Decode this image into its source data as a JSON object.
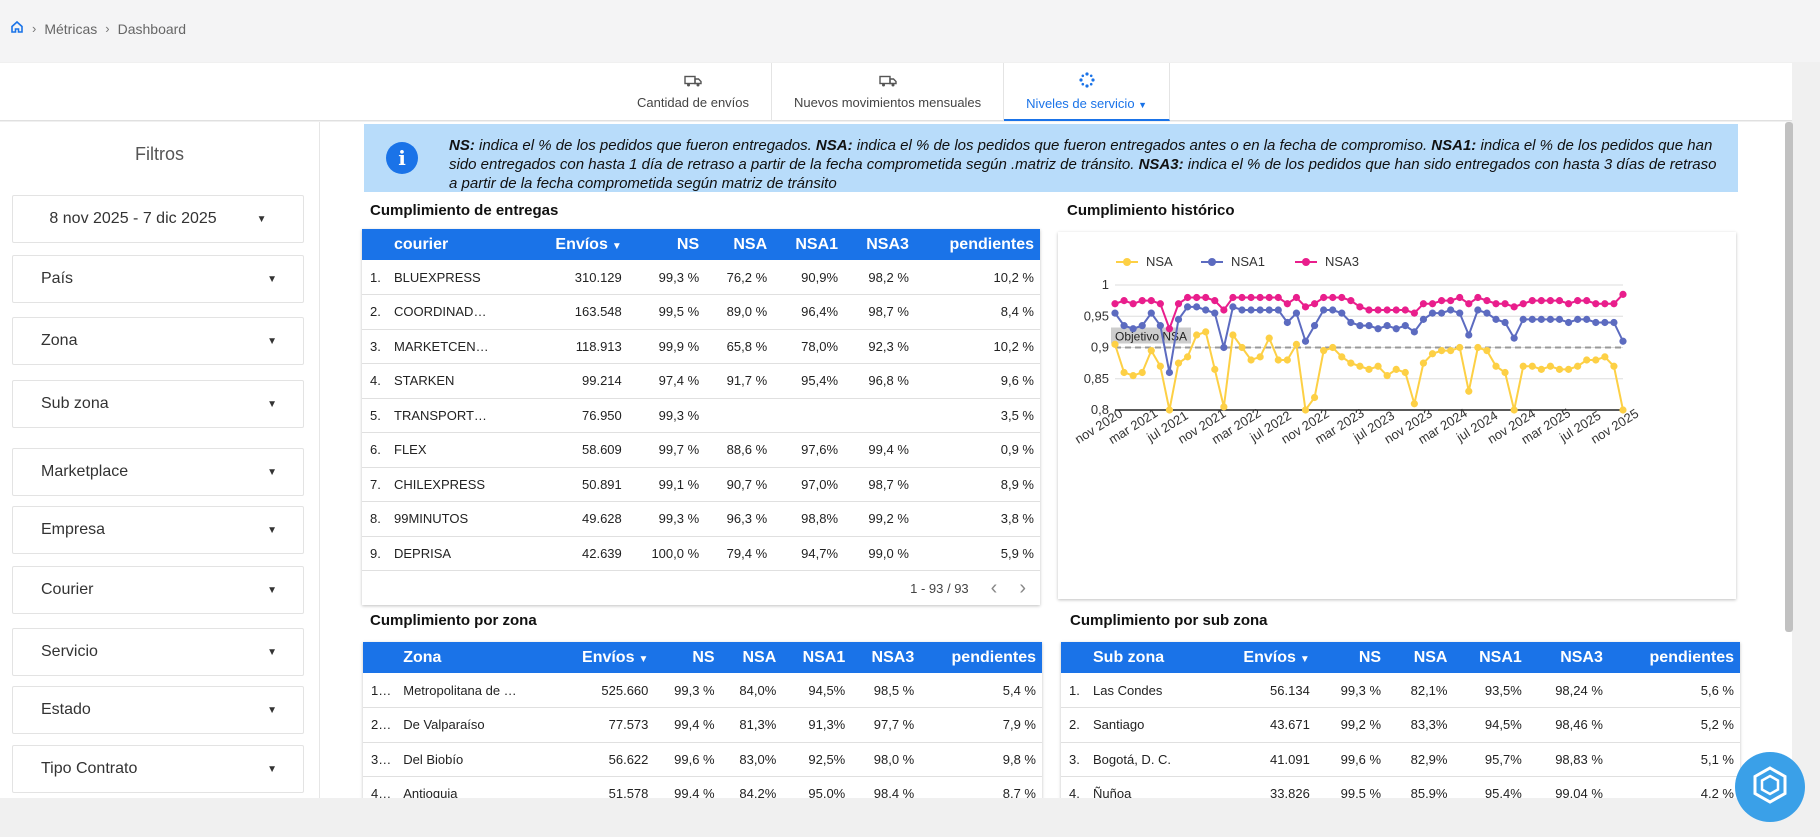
{
  "breadcrumb": {
    "home_icon": "home-icon",
    "items": [
      "Métricas",
      "Dashboard"
    ]
  },
  "tabs": [
    {
      "label": "Cantidad de envíos",
      "icon": "truck-icon"
    },
    {
      "label": "Nuevos movimientos mensuales",
      "icon": "truck-icon"
    },
    {
      "label": "Niveles de servicio",
      "icon": "loading-icon",
      "active": true
    }
  ],
  "sidebar": {
    "title": "Filtros",
    "date_range": "8 nov 2025 - 7 dic 2025",
    "filters": [
      "País",
      "Zona",
      "Sub zona",
      "Marketplace",
      "Empresa",
      "Courier",
      "Servicio",
      "Estado",
      "Tipo Contrato"
    ]
  },
  "info": {
    "ns_label": "NS:",
    "ns_text": " indica el % de los pedidos que fueron entregados. ",
    "nsa_label": "NSA:",
    "nsa_text": "  indica el % de los pedidos que fueron entregados antes o en la fecha de compromiso. ",
    "nsa1_label": "NSA1:",
    "nsa1_text": "  indica el % de los pedidos que han sido entregados con hasta 1 día de retraso a partir de la fecha comprometida según .matriz de tránsito. ",
    "nsa3_label": "NSA3:",
    "nsa3_text": "  indica el % de los pedidos que han sido entregados con hasta 3 días de retraso a partir de la fecha comprometida según matriz de tránsito"
  },
  "entregas": {
    "title": "Cumplimiento de entregas",
    "headers": [
      "courier",
      "Envíos",
      "NS",
      "NSA",
      "NSA1",
      "NSA3",
      "pendientes"
    ],
    "rows": [
      [
        "1.",
        "BLUEXPRESS",
        "310.129",
        "99,3 %",
        "76,2 %",
        "90,9%",
        "98,2 %",
        "10,2 %"
      ],
      [
        "2.",
        "COORDINAD…",
        "163.548",
        "99,5 %",
        "89,0 %",
        "96,4%",
        "98,7 %",
        "8,4 %"
      ],
      [
        "3.",
        "MARKETCEN…",
        "118.913",
        "99,9 %",
        "65,8 %",
        "78,0%",
        "92,3 %",
        "10,2 %"
      ],
      [
        "4.",
        "STARKEN",
        "99.214",
        "97,4 %",
        "91,7 %",
        "95,4%",
        "96,8 %",
        "9,6 %"
      ],
      [
        "5.",
        "TRANSPORT…",
        "76.950",
        "99,3 %",
        "",
        "",
        "",
        "3,5 %"
      ],
      [
        "6.",
        "FLEX",
        "58.609",
        "99,7 %",
        "88,6 %",
        "97,6%",
        "99,4 %",
        "0,9 %"
      ],
      [
        "7.",
        "CHILEXPRESS",
        "50.891",
        "99,1 %",
        "90,7 %",
        "97,0%",
        "98,7 %",
        "8,9 %"
      ],
      [
        "8.",
        "99MINUTOS",
        "49.628",
        "99,3 %",
        "96,3 %",
        "98,8%",
        "99,2 %",
        "3,8 %"
      ],
      [
        "9.",
        "DEPRISA",
        "42.639",
        "100,0 %",
        "79,4 %",
        "94,7%",
        "99,0 %",
        "5,9 %"
      ]
    ],
    "pager": "1 - 93 / 93"
  },
  "zona": {
    "title": "Cumplimiento por zona",
    "headers": [
      "Zona",
      "Envíos",
      "NS",
      "NSA",
      "NSA1",
      "NSA3",
      "pendientes"
    ],
    "rows": [
      [
        "1…",
        "Metropolitana de …",
        "525.660",
        "99,3 %",
        "84,0%",
        "94,5%",
        "98,5 %",
        "5,4 %"
      ],
      [
        "2…",
        "De Valparaíso",
        "77.573",
        "99,4 %",
        "81,3%",
        "91,3%",
        "97,7 %",
        "7,9 %"
      ],
      [
        "3…",
        "Del Biobío",
        "56.622",
        "99,6 %",
        "83,0%",
        "92,5%",
        "98,0 %",
        "9,8 %"
      ],
      [
        "4…",
        "Antioquia",
        "51.578",
        "99,4 %",
        "84,2%",
        "95,0%",
        "98,4 %",
        "8,7 %"
      ]
    ]
  },
  "subzona": {
    "title": "Cumplimiento por sub zona",
    "headers": [
      "Sub zona",
      "Envíos",
      "NS",
      "NSA",
      "NSA1",
      "NSA3",
      "pendientes"
    ],
    "rows": [
      [
        "1.",
        "Las Condes",
        "56.134",
        "99,3 %",
        "82,1%",
        "93,5%",
        "98,24 %",
        "5,6 %"
      ],
      [
        "2.",
        "Santiago",
        "43.671",
        "99,2 %",
        "83,3%",
        "94,5%",
        "98,46 %",
        "5,2 %"
      ],
      [
        "3.",
        "Bogotá, D. C.",
        "41.091",
        "99,6 %",
        "82,9%",
        "95,7%",
        "98,83 %",
        "5,1 %"
      ],
      [
        "4.",
        "Ñuñoa",
        "33.826",
        "99,5 %",
        "85,9%",
        "95,4%",
        "99,04 %",
        "4,2 %"
      ]
    ]
  },
  "chart_data": {
    "type": "line",
    "title": "Cumplimiento histórico",
    "xlabel": "",
    "ylabel": "",
    "ylim": [
      0.8,
      1
    ],
    "yticks": [
      "1",
      "0,95",
      "0,9",
      "0,85",
      "0,8"
    ],
    "xticks": [
      "nov 2020",
      "mar 2021",
      "jul 2021",
      "nov 2021",
      "mar 2022",
      "jul 2022",
      "nov 2022",
      "mar 2023",
      "jul 2023",
      "nov 2023",
      "mar 2024",
      "jul 2024",
      "nov 2024",
      "mar 2025",
      "jul 2025",
      "nov 2025"
    ],
    "reference_line": {
      "label": "Objetivo NSA",
      "value": 0.9
    },
    "series": [
      {
        "name": "NSA",
        "color": "#fdd045",
        "values": [
          0.905,
          0.86,
          0.855,
          0.86,
          0.895,
          0.87,
          0.8,
          0.875,
          0.885,
          0.92,
          0.925,
          0.865,
          0.805,
          0.92,
          0.9,
          0.88,
          0.885,
          0.915,
          0.88,
          0.88,
          0.905,
          0.795,
          0.82,
          0.895,
          0.9,
          0.885,
          0.875,
          0.87,
          0.865,
          0.87,
          0.855,
          0.865,
          0.86,
          0.81,
          0.875,
          0.89,
          0.895,
          0.895,
          0.9,
          0.83,
          0.9,
          0.895,
          0.87,
          0.86,
          0.795,
          0.87,
          0.87,
          0.865,
          0.87,
          0.865,
          0.865,
          0.87,
          0.88,
          0.88,
          0.885,
          0.87,
          0.8
        ]
      },
      {
        "name": "NSA1",
        "color": "#5c6bc0",
        "values": [
          0.955,
          0.935,
          0.93,
          0.935,
          0.955,
          0.935,
          0.86,
          0.945,
          0.965,
          0.965,
          0.96,
          0.955,
          0.9,
          0.965,
          0.96,
          0.96,
          0.96,
          0.96,
          0.96,
          0.94,
          0.955,
          0.91,
          0.935,
          0.96,
          0.96,
          0.955,
          0.94,
          0.935,
          0.935,
          0.93,
          0.935,
          0.93,
          0.935,
          0.925,
          0.945,
          0.955,
          0.955,
          0.96,
          0.955,
          0.92,
          0.96,
          0.955,
          0.945,
          0.94,
          0.915,
          0.945,
          0.945,
          0.945,
          0.945,
          0.945,
          0.94,
          0.945,
          0.945,
          0.94,
          0.94,
          0.94,
          0.91
        ]
      },
      {
        "name": "NSA3",
        "color": "#e91e8c",
        "values": [
          0.97,
          0.975,
          0.97,
          0.975,
          0.975,
          0.97,
          0.93,
          0.97,
          0.98,
          0.98,
          0.98,
          0.975,
          0.96,
          0.98,
          0.98,
          0.98,
          0.98,
          0.98,
          0.98,
          0.97,
          0.98,
          0.965,
          0.97,
          0.98,
          0.98,
          0.98,
          0.975,
          0.965,
          0.96,
          0.96,
          0.96,
          0.96,
          0.96,
          0.955,
          0.97,
          0.97,
          0.975,
          0.975,
          0.98,
          0.97,
          0.98,
          0.975,
          0.97,
          0.97,
          0.965,
          0.97,
          0.975,
          0.975,
          0.975,
          0.975,
          0.97,
          0.975,
          0.975,
          0.97,
          0.97,
          0.97,
          0.985
        ]
      }
    ]
  },
  "colors": {
    "accent": "#1a73e8",
    "info_bg": "#b8dcfa"
  }
}
